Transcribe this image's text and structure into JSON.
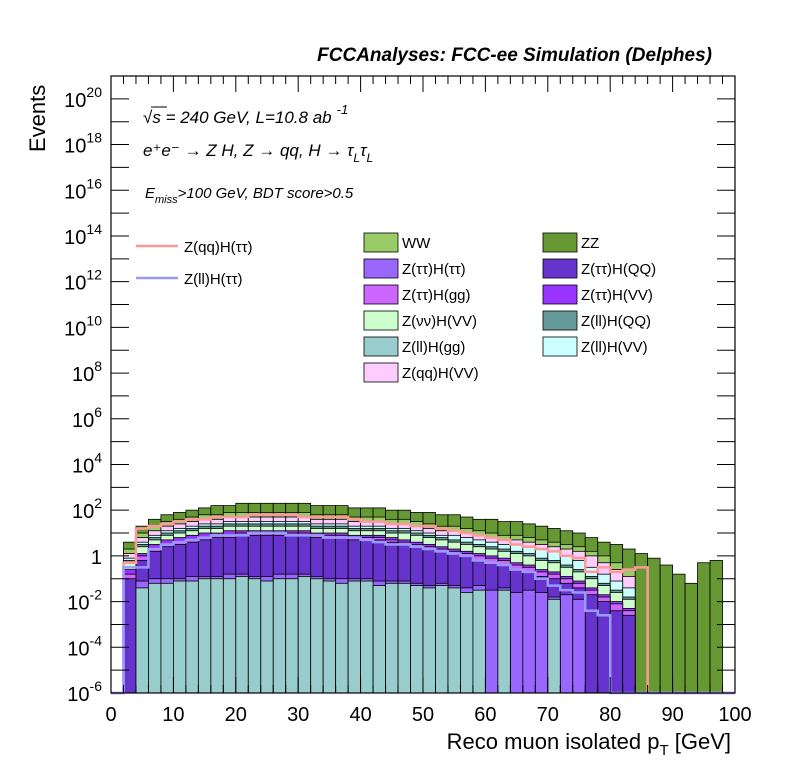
{
  "header": "FCCAnalyses: FCC-ee Simulation (Delphes)",
  "annotations": {
    "line1_sqrt": "√s",
    "line1_rest": " = 240 GeV, L=10.8 ab",
    "line1_exp": "-1",
    "line2": "e⁺e⁻ → Z H, Z → qq, H → τ",
    "line2_sub1": "L",
    "line2_tau2": "τ",
    "line2_sub2": "L",
    "line3_E": "E",
    "line3_sub": "miss",
    "line3_rest": ">100 GeV, BDT score>0.5"
  },
  "chart_data": {
    "type": "histogram-stacked-log",
    "xlabel": "Reco muon isolated p",
    "xlabel_sub": "T",
    "xlabel_unit": " [GeV]",
    "ylabel": "Events",
    "xlim": [
      0,
      100
    ],
    "ylim_exp": [
      -6,
      21
    ],
    "y_scale": "log",
    "bin_width": 2,
    "x_ticks": [
      "0",
      "10",
      "20",
      "30",
      "40",
      "50",
      "60",
      "70",
      "80",
      "90",
      "100"
    ],
    "y_ticks": [
      {
        "base": "10",
        "exp": "20",
        "v": 20
      },
      {
        "base": "10",
        "exp": "18",
        "v": 18
      },
      {
        "base": "10",
        "exp": "16",
        "v": 16
      },
      {
        "base": "10",
        "exp": "14",
        "v": 14
      },
      {
        "base": "10",
        "exp": "12",
        "v": 12
      },
      {
        "base": "10",
        "exp": "10",
        "v": 10
      },
      {
        "base": "10",
        "exp": "8",
        "v": 8
      },
      {
        "base": "10",
        "exp": "6",
        "v": 6
      },
      {
        "base": "10",
        "exp": "4",
        "v": 4
      },
      {
        "base": "10",
        "exp": "2",
        "v": 2
      },
      {
        "base": "1",
        "exp": "",
        "v": 0
      },
      {
        "base": "10",
        "exp": "-2",
        "v": -2
      },
      {
        "base": "10",
        "exp": "-4",
        "v": -4
      },
      {
        "base": "10",
        "exp": "-6",
        "v": -6
      }
    ],
    "stack_levels_log10": {
      "Z(ll)H(gg)": [
        -6,
        -6,
        -1.4,
        -1.2,
        -1.2,
        -1.1,
        -1.1,
        -1.0,
        -1.0,
        -1.0,
        -0.9,
        -1.0,
        -1.1,
        -1.0,
        -1.0,
        -0.9,
        -1.0,
        -1.1,
        -1.2,
        -1.1,
        -1.1,
        -1.3,
        -1.2,
        -1.2,
        -1.3,
        -1.4,
        -1.3,
        -1.4,
        -1.6,
        -1.5,
        -6,
        -1.5,
        -6,
        -6,
        -6,
        -1.9,
        -6,
        -6,
        -6,
        -6,
        -6,
        -6,
        -6,
        -6,
        -6,
        -6,
        -6,
        -6,
        -6,
        -6
      ],
      "Z(tautau)H(tautau)": [
        -6,
        -6,
        -1.1,
        -1.0,
        -1.0,
        -1.0,
        -0.9,
        -0.9,
        -0.9,
        -0.8,
        -0.8,
        -0.9,
        -0.9,
        -0.8,
        -0.8,
        -0.8,
        -0.9,
        -1.0,
        -1.0,
        -1.0,
        -1.0,
        -1.1,
        -1.1,
        -1.1,
        -1.2,
        -1.3,
        -1.2,
        -1.3,
        -1.4,
        -1.3,
        -1.5,
        -1.4,
        -1.6,
        -1.5,
        -1.6,
        -1.8,
        -1.7,
        -1.9,
        -6,
        -6,
        -6,
        -6,
        -6,
        -6,
        -6,
        -6,
        -6,
        -6,
        -6,
        -6
      ],
      "Z(tautau)H(QQ)": [
        -6,
        -1.0,
        -0.2,
        0.2,
        0.4,
        0.5,
        0.6,
        0.7,
        0.8,
        0.8,
        0.9,
        0.9,
        0.9,
        0.9,
        0.9,
        0.9,
        0.8,
        0.8,
        0.8,
        0.7,
        0.7,
        0.7,
        0.6,
        0.5,
        0.4,
        0.3,
        0.2,
        0.1,
        0.0,
        -0.2,
        -0.3,
        -0.4,
        -0.6,
        -0.7,
        -0.9,
        -1.0,
        -1.2,
        -1.4,
        -1.7,
        -2.0,
        -2.4,
        -2.6,
        -6,
        -6,
        -6,
        -6,
        -6,
        -6,
        -6,
        -6
      ],
      "Z(tautau)H(gg)": [
        -6,
        -0.8,
        0.0,
        0.3,
        0.5,
        0.6,
        0.7,
        0.8,
        0.9,
        0.9,
        1.0,
        1.0,
        1.0,
        1.0,
        1.0,
        1.0,
        0.9,
        0.9,
        0.9,
        0.8,
        0.8,
        0.8,
        0.7,
        0.6,
        0.5,
        0.4,
        0.3,
        0.2,
        0.1,
        0.0,
        -0.1,
        -0.2,
        -0.4,
        -0.5,
        -0.7,
        -0.8,
        -1.0,
        -1.2,
        -1.5,
        -1.8,
        -2.1,
        -2.4,
        -6,
        -6,
        -6,
        -6,
        -6,
        -6,
        -6,
        -6
      ],
      "Z(tautau)H(VV)": [
        -6,
        -0.6,
        0.1,
        0.5,
        0.7,
        0.8,
        0.9,
        1.0,
        1.0,
        1.1,
        1.1,
        1.1,
        1.1,
        1.1,
        1.1,
        1.1,
        1.0,
        1.0,
        1.0,
        0.9,
        0.9,
        0.9,
        0.8,
        0.7,
        0.6,
        0.5,
        0.4,
        0.3,
        0.2,
        0.1,
        0.0,
        -0.1,
        -0.3,
        -0.4,
        -0.6,
        -0.7,
        -0.9,
        -1.1,
        -1.4,
        -1.7,
        -2.0,
        -2.3,
        -6,
        -6,
        -6,
        -6,
        -6,
        -6,
        -6,
        -6
      ],
      "Z(nunu)H(VV)": [
        -6,
        -0.3,
        0.4,
        0.7,
        0.9,
        1.0,
        1.1,
        1.2,
        1.2,
        1.3,
        1.3,
        1.3,
        1.3,
        1.3,
        1.3,
        1.3,
        1.2,
        1.2,
        1.2,
        1.1,
        1.1,
        1.1,
        1.0,
        1.0,
        0.9,
        0.8,
        0.7,
        0.6,
        0.5,
        0.4,
        0.3,
        0.2,
        0.1,
        0.0,
        -0.2,
        -0.3,
        -0.5,
        -0.7,
        -1.0,
        -1.3,
        -1.6,
        -1.9,
        -6,
        -6,
        -6,
        -6,
        -6,
        -6,
        -6,
        -6
      ],
      "Z(ll)H(QQ)": [
        -6,
        -0.2,
        0.5,
        0.8,
        1.0,
        1.1,
        1.2,
        1.3,
        1.3,
        1.4,
        1.4,
        1.4,
        1.4,
        1.4,
        1.4,
        1.4,
        1.3,
        1.3,
        1.3,
        1.2,
        1.2,
        1.2,
        1.1,
        1.1,
        1.0,
        0.9,
        0.8,
        0.7,
        0.6,
        0.5,
        0.4,
        0.3,
        0.2,
        0.1,
        -0.1,
        -0.2,
        -0.4,
        -0.6,
        -0.9,
        -1.2,
        -1.5,
        -1.8,
        -6,
        -6,
        -6,
        -6,
        -6,
        -6,
        -6,
        -6
      ],
      "Z(ll)H(VV)": [
        -6,
        -0.1,
        0.6,
        0.9,
        1.1,
        1.2,
        1.3,
        1.4,
        1.4,
        1.5,
        1.5,
        1.5,
        1.5,
        1.5,
        1.5,
        1.5,
        1.4,
        1.4,
        1.4,
        1.3,
        1.3,
        1.3,
        1.2,
        1.2,
        1.1,
        1.0,
        0.9,
        0.9,
        0.8,
        0.7,
        0.6,
        0.5,
        0.5,
        0.4,
        0.3,
        0.2,
        0.0,
        -0.2,
        -0.5,
        -0.8,
        -1.1,
        -1.4,
        -6,
        -6,
        -6,
        -6,
        -6,
        -6,
        -6,
        -6
      ],
      "Z(qq)H(VV)": [
        -6,
        0.1,
        0.8,
        1.1,
        1.3,
        1.4,
        1.5,
        1.6,
        1.6,
        1.7,
        1.7,
        1.7,
        1.7,
        1.7,
        1.7,
        1.7,
        1.6,
        1.6,
        1.6,
        1.5,
        1.5,
        1.5,
        1.4,
        1.4,
        1.3,
        1.2,
        1.1,
        1.1,
        1.0,
        0.9,
        0.8,
        0.7,
        0.7,
        0.6,
        0.5,
        0.4,
        0.3,
        0.2,
        0.0,
        -0.3,
        -0.6,
        -0.9,
        -6,
        -6,
        -6,
        -6,
        -6,
        -6,
        -6,
        -6
      ],
      "WW": [
        -6,
        0.3,
        1.0,
        1.3,
        1.5,
        1.6,
        1.7,
        1.8,
        1.8,
        1.9,
        1.9,
        1.9,
        1.9,
        1.9,
        1.9,
        1.9,
        1.8,
        1.8,
        1.8,
        1.7,
        1.7,
        1.7,
        1.6,
        1.6,
        1.5,
        1.4,
        1.3,
        1.3,
        1.2,
        1.1,
        1.0,
        0.9,
        0.9,
        0.8,
        0.7,
        0.6,
        0.5,
        0.4,
        0.2,
        0.0,
        -0.3,
        -0.6,
        -6,
        -6,
        -6,
        -6,
        -6,
        -6,
        -6,
        -6
      ],
      "ZZ": [
        -6,
        0.6,
        1.3,
        1.6,
        1.8,
        1.9,
        2.0,
        2.1,
        2.2,
        2.2,
        2.3,
        2.3,
        2.3,
        2.3,
        2.3,
        2.3,
        2.2,
        2.2,
        2.2,
        2.1,
        2.1,
        2.1,
        2.0,
        2.0,
        1.9,
        1.9,
        1.8,
        1.8,
        1.7,
        1.6,
        1.6,
        1.5,
        1.5,
        1.4,
        1.3,
        1.2,
        1.1,
        1.0,
        0.8,
        0.6,
        0.5,
        0.3,
        0.1,
        -0.1,
        -0.4,
        -0.8,
        -1.2,
        -0.3,
        -0.2,
        -6
      ]
    },
    "lines_log10": {
      "Z(qq)H(tautau)": [
        -6,
        -0.3,
        1.2,
        1.3,
        1.4,
        1.5,
        1.6,
        1.6,
        1.7,
        1.7,
        1.7,
        1.8,
        1.8,
        1.8,
        1.8,
        1.7,
        1.7,
        1.7,
        1.7,
        1.6,
        1.5,
        1.5,
        1.4,
        1.4,
        1.3,
        1.3,
        1.2,
        1.1,
        1.0,
        0.9,
        0.8,
        0.7,
        0.5,
        0.4,
        0.3,
        0.2,
        0.0,
        -0.1,
        -0.7,
        -0.5,
        -0.7,
        -0.6,
        -0.5,
        -6,
        -6,
        -6,
        -6,
        -6,
        -6,
        -6
      ],
      "Z(ll)H(tautau)": [
        -6,
        -0.5,
        -0.5,
        0.3,
        0.5,
        0.6,
        0.7,
        0.8,
        0.9,
        0.9,
        0.9,
        1.0,
        1.0,
        1.0,
        0.9,
        0.9,
        0.9,
        0.8,
        0.8,
        0.8,
        0.7,
        0.6,
        0.5,
        0.5,
        0.4,
        0.3,
        0.2,
        0.1,
        0.0,
        -0.2,
        -0.3,
        -0.4,
        -0.6,
        -0.7,
        -1.0,
        -1.3,
        -1.5,
        -1.6,
        -2.4,
        -2.6,
        -6,
        -6,
        -6,
        -6,
        -6,
        -6,
        -6,
        -6,
        -6,
        -6
      ]
    },
    "colors": {
      "WW": "#99cc66",
      "ZZ": "#669933",
      "Z(tautau)H(tautau)": "#9966ff",
      "Z(tautau)H(QQ)": "#6633cc",
      "Z(tautau)H(gg)": "#cc66ff",
      "Z(tautau)H(VV)": "#9933ff",
      "Z(nunu)H(VV)": "#ccffcc",
      "Z(ll)H(QQ)": "#669999",
      "Z(ll)H(gg)": "#99cccc",
      "Z(ll)H(VV)": "#ccffff",
      "Z(qq)H(VV)": "#ffccff",
      "Z(qq)H(tautau)": "#ff9999",
      "Z(ll)H(tautau)": "#9999ff"
    },
    "legend_lines": [
      {
        "key": "Z(qq)H(tautau)",
        "label": "Z(qq)H(ττ)"
      },
      {
        "key": "Z(ll)H(tautau)",
        "label": "Z(ll)H(ττ)"
      }
    ],
    "legend_boxes": [
      {
        "key": "WW",
        "label": "WW"
      },
      {
        "key": "ZZ",
        "label": "ZZ"
      },
      {
        "key": "Z(tautau)H(tautau)",
        "label": "Z(ττ)H(ττ)"
      },
      {
        "key": "Z(tautau)H(QQ)",
        "label": "Z(ττ)H(QQ)"
      },
      {
        "key": "Z(tautau)H(gg)",
        "label": "Z(ττ)H(gg)"
      },
      {
        "key": "Z(tautau)H(VV)",
        "label": "Z(ττ)H(VV)"
      },
      {
        "key": "Z(nunu)H(VV)",
        "label": "Z(νν)H(VV)"
      },
      {
        "key": "Z(ll)H(QQ)",
        "label": "Z(ll)H(QQ)"
      },
      {
        "key": "Z(ll)H(gg)",
        "label": "Z(ll)H(gg)"
      },
      {
        "key": "Z(ll)H(VV)",
        "label": "Z(ll)H(VV)"
      },
      {
        "key": "Z(qq)H(VV)",
        "label": "Z(qq)H(VV)"
      }
    ]
  }
}
